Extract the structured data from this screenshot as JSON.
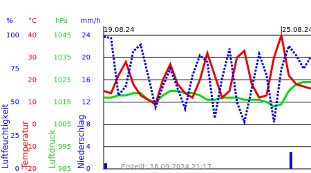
{
  "chart_data": {
    "type": "line",
    "xlim": [
      0,
      7
    ],
    "x_labels": [
      {
        "value": 0,
        "label": "19.08.24"
      },
      {
        "value": 6,
        "label": "25.08.24"
      }
    ],
    "x": [
      0,
      0.25,
      0.5,
      0.75,
      1,
      1.25,
      1.5,
      1.75,
      2,
      2.25,
      2.5,
      2.75,
      3,
      3.25,
      3.5,
      3.75,
      4,
      4.25,
      4.5,
      4.75,
      5,
      5.25,
      5.5,
      5.75,
      6,
      6.25,
      6.5,
      6.75,
      7
    ],
    "axes": [
      {
        "unit": "%",
        "label": "Luftfeuchtigkeit",
        "color": "#0000ff",
        "ylim": [
          0,
          100
        ],
        "yticks": [
          0,
          25,
          50,
          75,
          100
        ]
      },
      {
        "unit": "°C",
        "label": "Temperatur",
        "color": "#ff0000",
        "ylim": [
          -20,
          40
        ],
        "yticks": [
          -20,
          -10,
          0,
          10,
          20,
          30,
          40
        ]
      },
      {
        "unit": "hPa",
        "label": "Luftdruck",
        "color": "#22cc22",
        "ylim": [
          985,
          1045
        ],
        "yticks": [
          985,
          995,
          1005,
          1015,
          1025,
          1035,
          1045
        ]
      },
      {
        "unit": "mm/h",
        "label": "Niederschlag",
        "color": "#0000ff",
        "ylim": [
          0,
          24
        ],
        "yticks": [
          0,
          4,
          8,
          12,
          16,
          20,
          24
        ]
      }
    ],
    "series": [
      {
        "axis": 2,
        "type": "line",
        "color": "#00dd00",
        "values": [
          1017,
          1017,
          1018,
          1018,
          1019,
          1019,
          1016,
          1015,
          1018,
          1020,
          1020,
          1019,
          1019,
          1018,
          1016,
          1016,
          1017,
          1017,
          1017,
          1016,
          1016,
          1016,
          1015,
          1013,
          1014,
          1020,
          1023,
          1024,
          1024
        ]
      },
      {
        "axis": 1,
        "type": "line",
        "color": "#ee0000",
        "values": [
          15,
          14,
          22,
          28,
          18,
          13,
          11,
          9,
          20,
          27,
          18,
          14,
          12,
          20,
          32,
          22,
          12,
          15,
          30,
          33,
          18,
          12,
          13,
          30,
          40,
          22,
          18,
          17,
          16
        ]
      },
      {
        "axis": 0,
        "type": "line",
        "color": "#0000ff",
        "dashed": true,
        "values": [
          99,
          98,
          55,
          62,
          88,
          93,
          70,
          46,
          62,
          75,
          60,
          45,
          70,
          85,
          80,
          38,
          68,
          90,
          50,
          35,
          60,
          86,
          70,
          35,
          75,
          92,
          85,
          75,
          84
        ]
      },
      {
        "axis": 3,
        "type": "bar",
        "color": "#0000ff",
        "values": [
          1,
          0,
          0,
          0,
          0,
          0,
          0,
          0,
          0,
          0,
          0,
          0,
          0,
          0,
          0,
          0,
          0,
          0,
          0,
          0,
          0,
          0,
          0,
          0,
          0,
          3,
          0,
          0,
          0
        ]
      }
    ],
    "footer": "Erstellt: 16.09.2024 21:17"
  }
}
